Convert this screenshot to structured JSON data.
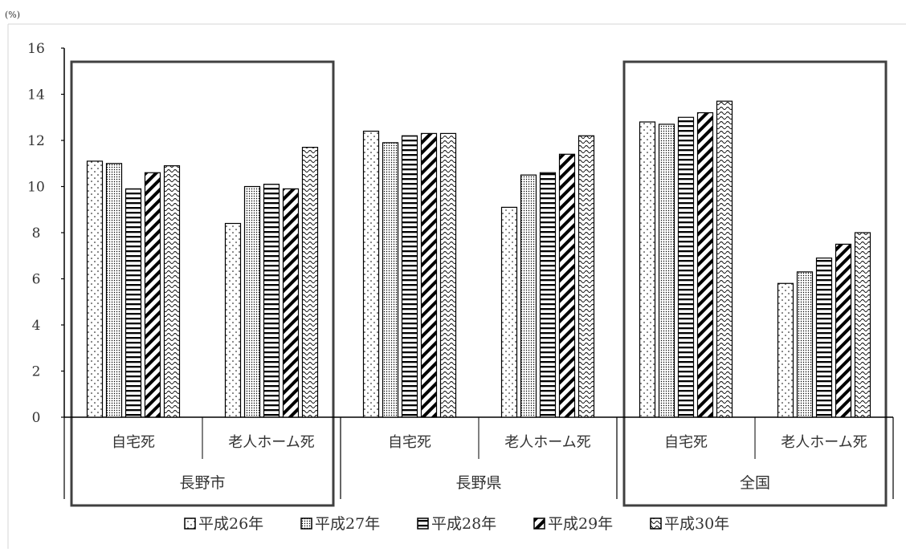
{
  "chart_data": {
    "type": "bar",
    "unit_label": "(%)",
    "ylim": [
      0,
      16
    ],
    "yticks": [
      0,
      2,
      4,
      6,
      8,
      10,
      12,
      14,
      16
    ],
    "grid": false,
    "legend_position": "bottom",
    "groups": [
      {
        "label": "長野市",
        "boxed": true
      },
      {
        "label": "長野県",
        "boxed": false
      },
      {
        "label": "全国",
        "boxed": true
      }
    ],
    "categories": [
      {
        "label": "自宅死",
        "group": 0
      },
      {
        "label": "老人ホーム死",
        "group": 0
      },
      {
        "label": "自宅死",
        "group": 1
      },
      {
        "label": "老人ホーム死",
        "group": 1
      },
      {
        "label": "自宅死",
        "group": 2
      },
      {
        "label": "老人ホーム死",
        "group": 2
      }
    ],
    "series": [
      {
        "name": "平成26年",
        "pattern": "dots",
        "values": [
          11.1,
          8.4,
          12.4,
          9.1,
          12.8,
          5.8
        ]
      },
      {
        "name": "平成27年",
        "pattern": "fine-dots",
        "values": [
          11.0,
          10.0,
          11.9,
          10.5,
          12.7,
          6.3
        ]
      },
      {
        "name": "平成28年",
        "pattern": "horizontal",
        "values": [
          9.9,
          10.1,
          12.2,
          10.6,
          13.0,
          6.9
        ]
      },
      {
        "name": "平成29年",
        "pattern": "diagonal",
        "values": [
          10.6,
          9.9,
          12.3,
          11.4,
          13.2,
          7.5
        ]
      },
      {
        "name": "平成30年",
        "pattern": "wave",
        "values": [
          10.9,
          11.7,
          12.3,
          12.2,
          13.7,
          8.0
        ]
      }
    ]
  }
}
